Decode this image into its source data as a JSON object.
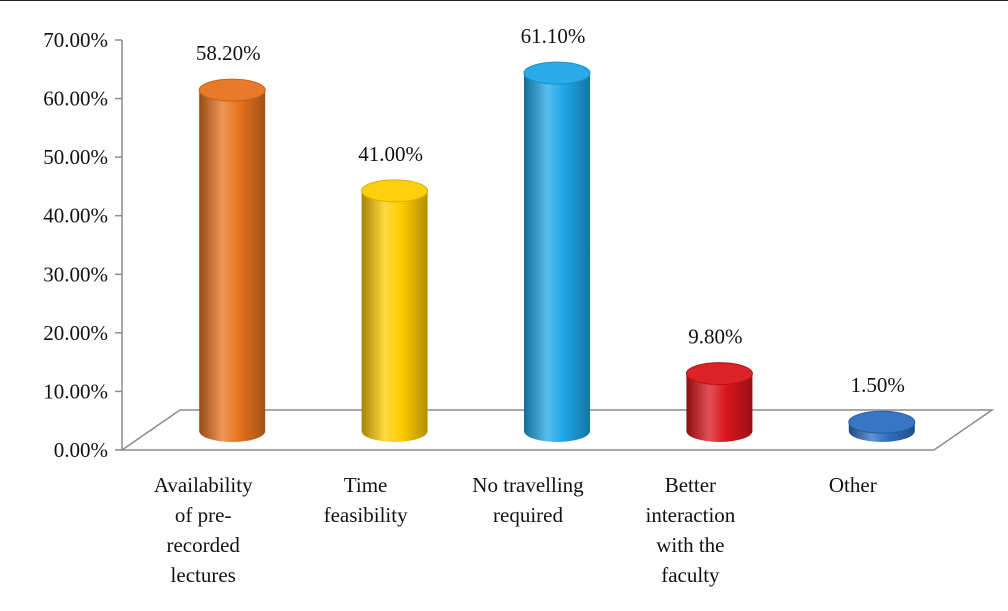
{
  "chart_data": {
    "type": "bar",
    "style": "3d-cylinder",
    "categories": [
      "Availability of pre-recorded lectures",
      "Time feasibility",
      "No travelling required",
      "Better interaction with the faculty",
      "Other"
    ],
    "category_lines": [
      [
        "Availability",
        "of pre-",
        "recorded",
        "lectures"
      ],
      [
        "Time",
        "feasibility"
      ],
      [
        "No travelling",
        "required"
      ],
      [
        "Better",
        "interaction",
        "with the",
        "faculty"
      ],
      [
        "Other"
      ]
    ],
    "values": [
      58.2,
      41.0,
      61.1,
      9.8,
      1.5
    ],
    "data_labels": [
      "58.20%",
      "41.00%",
      "61.10%",
      "9.80%",
      "1.50%"
    ],
    "y_ticks": [
      "0.00%",
      "10.00%",
      "20.00%",
      "30.00%",
      "40.00%",
      "50.00%",
      "60.00%",
      "70.00%"
    ],
    "ylim": [
      0,
      70
    ],
    "grid": false,
    "legend": "none",
    "colors": [
      "#e8731f",
      "#ffcc00",
      "#1ea7e8",
      "#d9161c",
      "#2e6fc0"
    ]
  }
}
